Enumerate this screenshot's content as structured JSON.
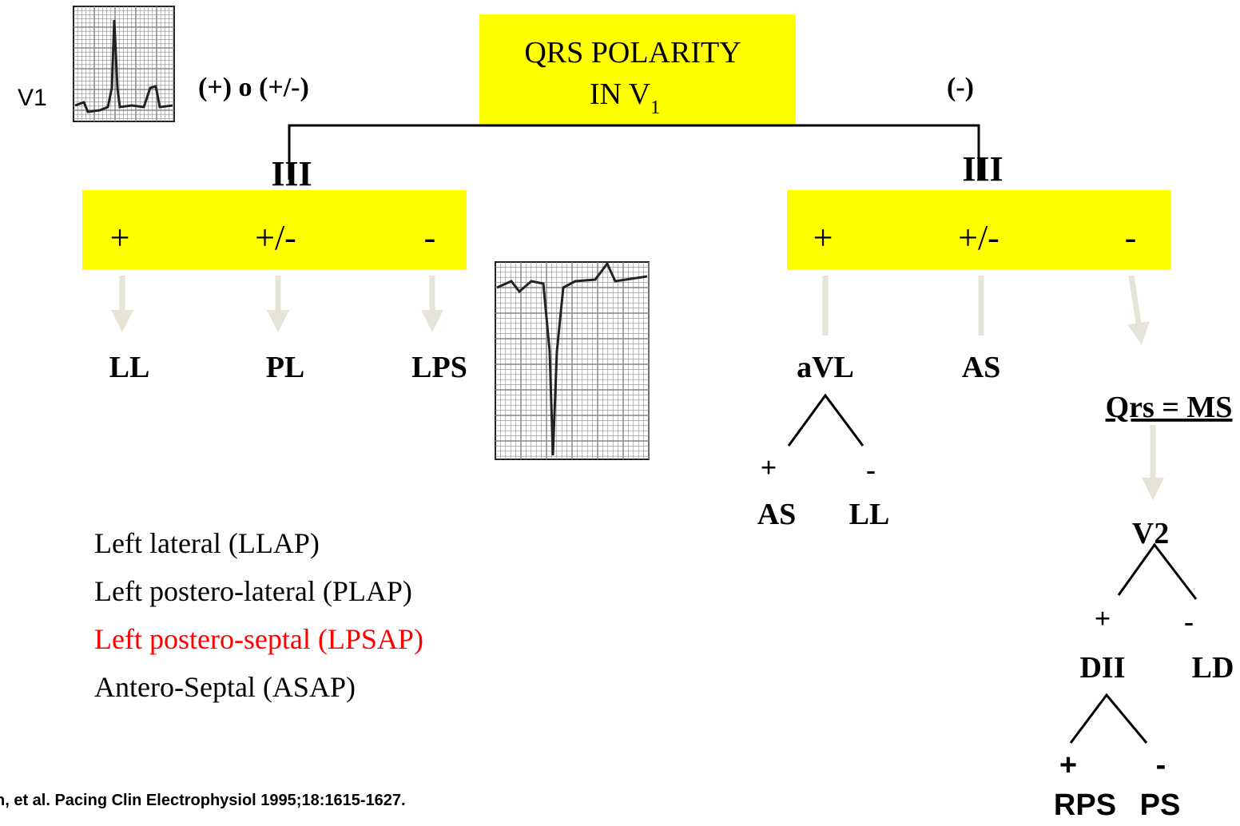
{
  "top": {
    "lead": "V1",
    "left_polarity": "(+) o (+/-)",
    "right_polarity": "(-)",
    "title_line1": "QRS POLARITY",
    "title_line2": "IN V",
    "title_sub": "1"
  },
  "left_branch": {
    "lead": "III",
    "signs": [
      "+",
      "+/-",
      "-"
    ],
    "results": [
      "LL",
      "PL",
      "LPS"
    ]
  },
  "right_branch": {
    "lead": "III",
    "signs": [
      "+",
      "+/-",
      "-"
    ],
    "results": [
      "aVL",
      "AS",
      "Qrs = MS"
    ]
  },
  "avl_tree": {
    "plus": "+",
    "minus": "-",
    "plus_result": "AS",
    "minus_result": "LL"
  },
  "v2_tree": {
    "lead": "V2",
    "plus": "+",
    "minus": "-",
    "plus_result": "DII",
    "minus_result": "LD"
  },
  "dii_tree": {
    "plus": "+",
    "minus": "-",
    "plus_result": "RPS",
    "minus_result": "PS"
  },
  "legend": [
    "Left lateral (LLAP)",
    "Left postero-lateral (PLAP)",
    "Left postero-septal (LPSAP)",
    "Antero-Septal (ASAP)"
  ],
  "citation": "n, et al. Pacing Clin Electrophysiol 1995;18:1615-1627."
}
